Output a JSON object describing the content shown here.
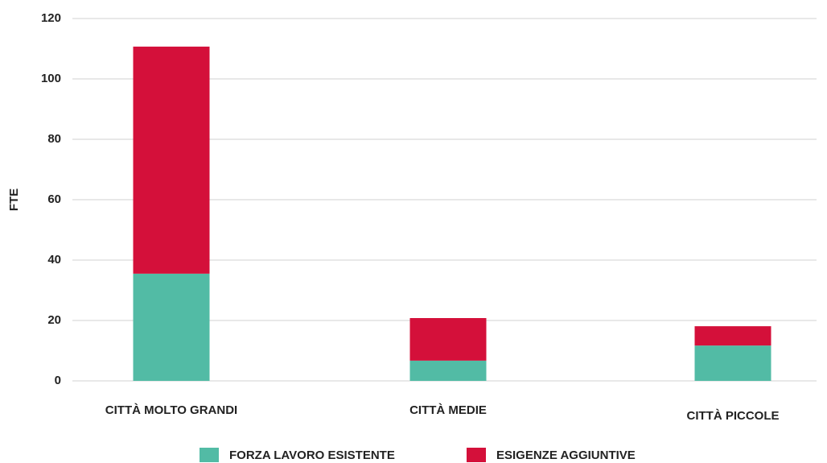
{
  "chart_data": {
    "type": "stacked_bar",
    "y_label": "FTE",
    "categories": [
      "CITTÀ MOLTO GRANDI",
      "CITTÀ MEDIE",
      "CITTÀ PICCOLE"
    ],
    "series": [
      {
        "name": "FORZA LAVORO ESISTENTE",
        "color": "#52bba5",
        "values": [
          35.5,
          6.7,
          11.7
        ]
      },
      {
        "name": "ESIGENZE AGGIUNTIVE",
        "color": "#d4103a",
        "values": [
          75.2,
          14.1,
          6.4
        ]
      }
    ],
    "ylim": [
      0,
      120
    ],
    "yticks": [
      0,
      20,
      40,
      60,
      80,
      100,
      120
    ],
    "grid": true,
    "legend": "bottom"
  }
}
